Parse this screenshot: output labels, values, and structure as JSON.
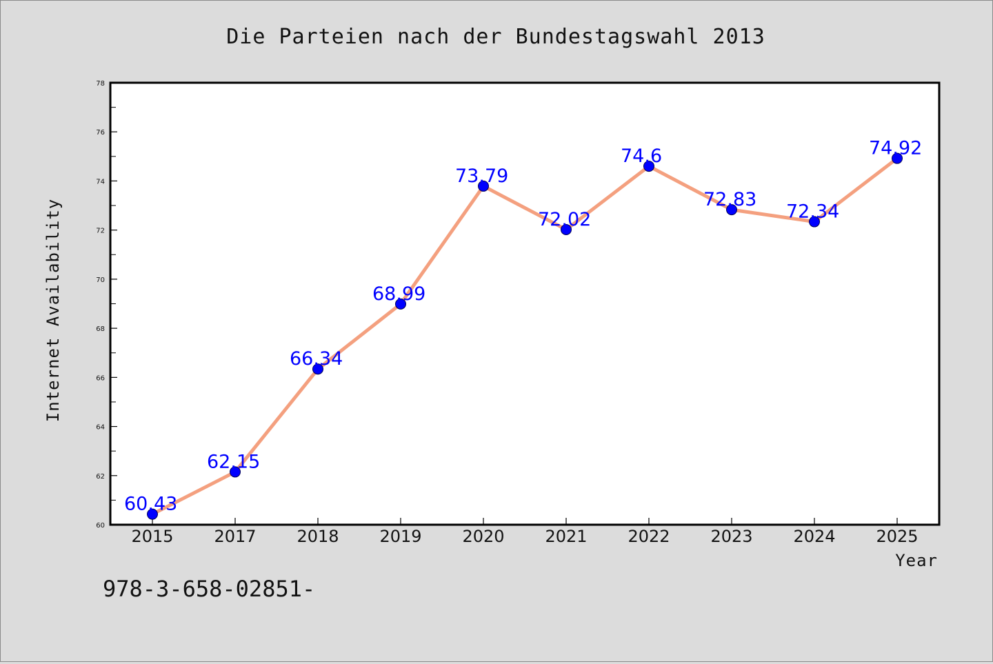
{
  "chart_data": {
    "type": "line",
    "title": "Die Parteien nach der Bundestagswahl 2013",
    "xlabel": "Year",
    "ylabel": "Internet Availability",
    "categories": [
      "2015",
      "2017",
      "2018",
      "2019",
      "2020",
      "2021",
      "2022",
      "2023",
      "2024",
      "2025"
    ],
    "series": [
      {
        "values": [
          60.43,
          62.15,
          66.34,
          68.99,
          73.79,
          72.02,
          74.6,
          72.83,
          72.34,
          74.92
        ],
        "labels": [
          "60.43",
          "62.15",
          "66.34",
          "68.99",
          "73.79",
          "72.02",
          "74.6",
          "72.83",
          "72.34",
          "74.92"
        ],
        "line_color": "#f4a07f",
        "marker_color": "#0000ff"
      }
    ],
    "ylim": [
      60,
      78
    ],
    "yticks": [
      "60",
      "62",
      "64",
      "66",
      "68",
      "70",
      "72",
      "74",
      "76",
      "78"
    ],
    "grid": false,
    "legend": "none"
  },
  "footnote": "978-3-658-02851-",
  "colors": {
    "background": "#dcdcdc",
    "plot_background": "#ffffff",
    "axis": "#000000",
    "line": "#f4a07f",
    "marker": "#0000ff",
    "data_label": "#0000ff"
  }
}
